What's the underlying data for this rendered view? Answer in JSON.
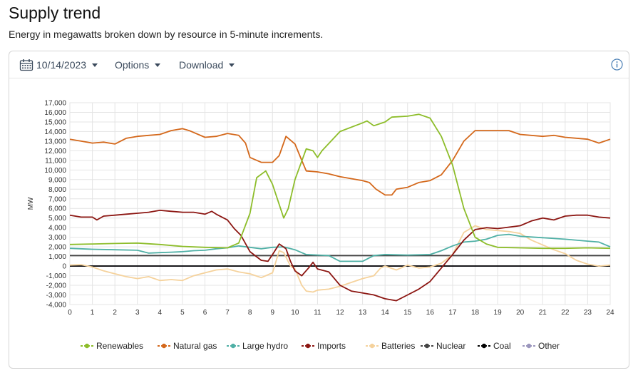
{
  "header": {
    "title": "Supply trend",
    "subtitle": "Energy in megawatts broken down by resource in 5-minute increments."
  },
  "toolbar": {
    "date": "10/14/2023",
    "options_label": "Options",
    "download_label": "Download"
  },
  "colors": {
    "Renewables": "#8dbd2a",
    "Natural gas": "#d4681b",
    "Large hydro": "#4fb0a6",
    "Imports": "#8c1612",
    "Batteries": "#f5d29c",
    "Nuclear": "#444444",
    "Coal": "#000000",
    "Other": "#9b96bd"
  },
  "chart_data": {
    "type": "line",
    "ylabel": "MW",
    "xlim": [
      0,
      24
    ],
    "ylim": [
      -4000,
      17000
    ],
    "x_ticks": [
      "0",
      "1",
      "2",
      "3",
      "4",
      "5",
      "6",
      "7",
      "8",
      "9",
      "10",
      "11",
      "12",
      "13",
      "14",
      "15",
      "16",
      "17",
      "18",
      "19",
      "20",
      "21",
      "22",
      "23",
      "24"
    ],
    "y_ticks": [
      "-4,000",
      "-3,000",
      "-2,000",
      "-1,000",
      "0",
      "1,000",
      "2,000",
      "3,000",
      "4,000",
      "5,000",
      "6,000",
      "7,000",
      "8,000",
      "9,000",
      "10,000",
      "11,000",
      "12,000",
      "13,000",
      "14,000",
      "15,000",
      "16,000",
      "17,000"
    ],
    "grid": true,
    "legend_position": "bottom",
    "series": [
      {
        "name": "Renewables",
        "points": [
          [
            0,
            2250
          ],
          [
            1,
            2300
          ],
          [
            2,
            2350
          ],
          [
            3,
            2400
          ],
          [
            4,
            2250
          ],
          [
            5,
            2050
          ],
          [
            6,
            1950
          ],
          [
            7,
            1900
          ],
          [
            7.5,
            2400
          ],
          [
            8,
            5500
          ],
          [
            8.3,
            9200
          ],
          [
            8.7,
            9900
          ],
          [
            9,
            8500
          ],
          [
            9.5,
            5000
          ],
          [
            9.7,
            6000
          ],
          [
            10,
            9000
          ],
          [
            10.5,
            12200
          ],
          [
            10.8,
            12000
          ],
          [
            11,
            11300
          ],
          [
            11.2,
            12000
          ],
          [
            12,
            14000
          ],
          [
            13,
            14900
          ],
          [
            13.2,
            15100
          ],
          [
            13.5,
            14600
          ],
          [
            14,
            15000
          ],
          [
            14.3,
            15500
          ],
          [
            15,
            15600
          ],
          [
            15.5,
            15800
          ],
          [
            16,
            15400
          ],
          [
            16.5,
            13500
          ],
          [
            17,
            10500
          ],
          [
            17.5,
            6000
          ],
          [
            18,
            3000
          ],
          [
            18.5,
            2300
          ],
          [
            19,
            1950
          ],
          [
            20,
            1900
          ],
          [
            21,
            1850
          ],
          [
            22,
            1850
          ],
          [
            23,
            1900
          ],
          [
            24,
            1850
          ]
        ]
      },
      {
        "name": "Natural gas",
        "points": [
          [
            0,
            13200
          ],
          [
            0.5,
            13000
          ],
          [
            1,
            12800
          ],
          [
            1.5,
            12900
          ],
          [
            2,
            12700
          ],
          [
            2.5,
            13300
          ],
          [
            3,
            13500
          ],
          [
            3.5,
            13600
          ],
          [
            4,
            13700
          ],
          [
            4.5,
            14100
          ],
          [
            5,
            14300
          ],
          [
            5.3,
            14100
          ],
          [
            6,
            13400
          ],
          [
            6.5,
            13500
          ],
          [
            7,
            13800
          ],
          [
            7.5,
            13600
          ],
          [
            7.8,
            12800
          ],
          [
            8,
            11300
          ],
          [
            8.5,
            10800
          ],
          [
            9,
            10800
          ],
          [
            9.3,
            11500
          ],
          [
            9.6,
            13500
          ],
          [
            10,
            12700
          ],
          [
            10.3,
            11000
          ],
          [
            10.5,
            9900
          ],
          [
            11,
            9800
          ],
          [
            11.5,
            9600
          ],
          [
            12,
            9300
          ],
          [
            13,
            8900
          ],
          [
            13.3,
            8700
          ],
          [
            13.6,
            8000
          ],
          [
            14,
            7400
          ],
          [
            14.3,
            7400
          ],
          [
            14.5,
            8000
          ],
          [
            15,
            8200
          ],
          [
            15.5,
            8700
          ],
          [
            16,
            8900
          ],
          [
            16.5,
            9500
          ],
          [
            17,
            11000
          ],
          [
            17.5,
            13000
          ],
          [
            18,
            14100
          ],
          [
            19,
            14100
          ],
          [
            19.5,
            14100
          ],
          [
            20,
            13700
          ],
          [
            21,
            13500
          ],
          [
            21.5,
            13600
          ],
          [
            22,
            13400
          ],
          [
            23,
            13200
          ],
          [
            23.5,
            12800
          ],
          [
            24,
            13200
          ]
        ]
      },
      {
        "name": "Large hydro",
        "points": [
          [
            0,
            1850
          ],
          [
            1,
            1750
          ],
          [
            2,
            1700
          ],
          [
            3,
            1650
          ],
          [
            3.5,
            1350
          ],
          [
            4,
            1400
          ],
          [
            4.5,
            1450
          ],
          [
            5,
            1500
          ],
          [
            5.5,
            1600
          ],
          [
            6,
            1650
          ],
          [
            6.5,
            1800
          ],
          [
            7,
            1900
          ],
          [
            7.5,
            2100
          ],
          [
            8,
            1950
          ],
          [
            8.5,
            1800
          ],
          [
            9,
            1950
          ],
          [
            9.5,
            2000
          ],
          [
            10,
            1700
          ],
          [
            10.5,
            1200
          ],
          [
            11,
            1150
          ],
          [
            11.5,
            1100
          ],
          [
            12,
            500
          ],
          [
            13,
            500
          ],
          [
            13.5,
            1100
          ],
          [
            14,
            1200
          ],
          [
            15,
            1150
          ],
          [
            16,
            1200
          ],
          [
            16.5,
            1600
          ],
          [
            17,
            2100
          ],
          [
            17.5,
            2500
          ],
          [
            18,
            2600
          ],
          [
            18.5,
            2800
          ],
          [
            19,
            3200
          ],
          [
            19.5,
            3300
          ],
          [
            20,
            3100
          ],
          [
            21,
            2950
          ],
          [
            22,
            2800
          ],
          [
            23,
            2600
          ],
          [
            23.5,
            2500
          ],
          [
            24,
            2000
          ]
        ]
      },
      {
        "name": "Imports",
        "points": [
          [
            0,
            5300
          ],
          [
            0.5,
            5100
          ],
          [
            1,
            5100
          ],
          [
            1.2,
            4800
          ],
          [
            1.5,
            5200
          ],
          [
            2,
            5300
          ],
          [
            2.5,
            5400
          ],
          [
            3,
            5500
          ],
          [
            3.5,
            5600
          ],
          [
            4,
            5800
          ],
          [
            4.5,
            5700
          ],
          [
            5,
            5600
          ],
          [
            5.5,
            5600
          ],
          [
            6,
            5400
          ],
          [
            6.3,
            5700
          ],
          [
            6.5,
            5400
          ],
          [
            7,
            4800
          ],
          [
            7.3,
            3900
          ],
          [
            7.6,
            3200
          ],
          [
            8,
            1500
          ],
          [
            8.5,
            600
          ],
          [
            8.8,
            500
          ],
          [
            9,
            1200
          ],
          [
            9.3,
            2300
          ],
          [
            9.6,
            1800
          ],
          [
            9.8,
            500
          ],
          [
            10,
            -500
          ],
          [
            10.3,
            -1000
          ],
          [
            10.6,
            -200
          ],
          [
            10.8,
            400
          ],
          [
            11,
            -300
          ],
          [
            11.5,
            -600
          ],
          [
            12,
            -2000
          ],
          [
            12.5,
            -2600
          ],
          [
            13,
            -2800
          ],
          [
            13.5,
            -3000
          ],
          [
            14,
            -3400
          ],
          [
            14.5,
            -3600
          ],
          [
            15,
            -3000
          ],
          [
            15.5,
            -2400
          ],
          [
            16,
            -1600
          ],
          [
            16.5,
            -200
          ],
          [
            17,
            1200
          ],
          [
            17.5,
            2700
          ],
          [
            18,
            3800
          ],
          [
            18.5,
            4000
          ],
          [
            19,
            3900
          ],
          [
            20,
            4200
          ],
          [
            20.5,
            4700
          ],
          [
            21,
            5000
          ],
          [
            21.5,
            4800
          ],
          [
            22,
            5200
          ],
          [
            22.5,
            5300
          ],
          [
            23,
            5300
          ],
          [
            23.5,
            5100
          ],
          [
            24,
            5000
          ]
        ]
      },
      {
        "name": "Batteries",
        "points": [
          [
            0,
            100
          ],
          [
            0.5,
            150
          ],
          [
            1,
            -100
          ],
          [
            1.5,
            -500
          ],
          [
            2,
            -800
          ],
          [
            2.5,
            -1100
          ],
          [
            3,
            -1300
          ],
          [
            3.5,
            -1100
          ],
          [
            4,
            -1500
          ],
          [
            4.5,
            -1400
          ],
          [
            5,
            -1500
          ],
          [
            5.5,
            -1000
          ],
          [
            6,
            -700
          ],
          [
            6.5,
            -400
          ],
          [
            7,
            -300
          ],
          [
            7.5,
            -600
          ],
          [
            8,
            -800
          ],
          [
            8.5,
            -1200
          ],
          [
            9,
            -700
          ],
          [
            9.3,
            1600
          ],
          [
            9.5,
            1400
          ],
          [
            9.8,
            0
          ],
          [
            10,
            -300
          ],
          [
            10.3,
            -2000
          ],
          [
            10.5,
            -2600
          ],
          [
            10.8,
            -2700
          ],
          [
            11,
            -2500
          ],
          [
            11.5,
            -2400
          ],
          [
            12,
            -2100
          ],
          [
            12.5,
            -1700
          ],
          [
            13,
            -1300
          ],
          [
            13.5,
            -1000
          ],
          [
            13.8,
            -200
          ],
          [
            14,
            0
          ],
          [
            14.5,
            -400
          ],
          [
            15,
            100
          ],
          [
            15.5,
            -200
          ],
          [
            16,
            -100
          ],
          [
            16.5,
            300
          ],
          [
            17,
            1200
          ],
          [
            17.5,
            3500
          ],
          [
            18,
            4200
          ],
          [
            18.5,
            3800
          ],
          [
            19,
            3700
          ],
          [
            19.5,
            3600
          ],
          [
            20,
            3400
          ],
          [
            20.5,
            2700
          ],
          [
            21,
            2200
          ],
          [
            21.5,
            1700
          ],
          [
            22,
            1300
          ],
          [
            22.5,
            600
          ],
          [
            23,
            200
          ],
          [
            23.5,
            0
          ],
          [
            24,
            100
          ]
        ]
      },
      {
        "name": "Nuclear",
        "points": [
          [
            0,
            1100
          ],
          [
            24,
            1100
          ]
        ]
      },
      {
        "name": "Coal",
        "points": [
          [
            0,
            5
          ],
          [
            24,
            5
          ]
        ]
      },
      {
        "name": "Other",
        "points": [
          [
            0,
            0
          ],
          [
            24,
            0
          ]
        ]
      }
    ]
  }
}
